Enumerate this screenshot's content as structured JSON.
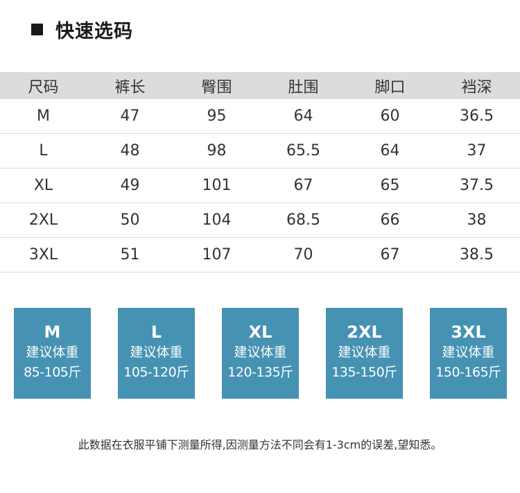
{
  "section": {
    "title": "快速选码"
  },
  "table": {
    "headers": [
      "尺码",
      "裤长",
      "臀围",
      "肚围",
      "脚口",
      "裆深"
    ],
    "rows": [
      [
        "M",
        "47",
        "95",
        "64",
        "60",
        "36.5"
      ],
      [
        "L",
        "48",
        "98",
        "65.5",
        "64",
        "37"
      ],
      [
        "XL",
        "49",
        "101",
        "67",
        "65",
        "37.5"
      ],
      [
        "2XL",
        "50",
        "104",
        "68.5",
        "66",
        "38"
      ],
      [
        "3XL",
        "51",
        "107",
        "70",
        "67",
        "38.5"
      ]
    ]
  },
  "cards": [
    {
      "size": "M",
      "label": "建议体重",
      "range": "85-105斤"
    },
    {
      "size": "L",
      "label": "建议体重",
      "range": "105-120斤"
    },
    {
      "size": "XL",
      "label": "建议体重",
      "range": "120-135斤"
    },
    {
      "size": "2XL",
      "label": "建议体重",
      "range": "135-150斤"
    },
    {
      "size": "3XL",
      "label": "建议体重",
      "range": "150-165斤"
    }
  ],
  "footnote": "此数据在衣服平铺下测量所得,因测量方法不同会有1-3cm的误差,望知悉。",
  "colors": {
    "header_bg": "#dcdcdc",
    "card_bg": "#4592b3",
    "text": "#333333"
  }
}
